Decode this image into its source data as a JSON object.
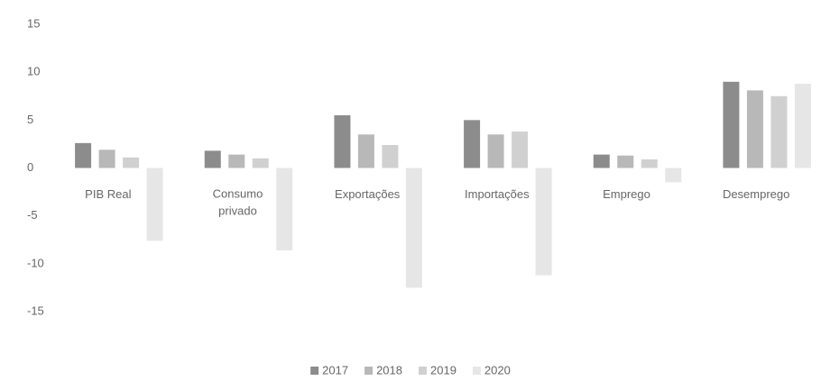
{
  "chart_data": {
    "type": "bar",
    "categories": [
      "PIB Real",
      "Consumo privado",
      "Exportações",
      "Importações",
      "Emprego",
      "Desemprego"
    ],
    "series": [
      {
        "name": "2017",
        "color": "#8c8c8c",
        "values": [
          2.6,
          1.8,
          5.5,
          5.0,
          1.4,
          9.0
        ]
      },
      {
        "name": "2018",
        "color": "#b8b8b8",
        "values": [
          1.9,
          1.4,
          3.5,
          3.5,
          1.3,
          8.1
        ]
      },
      {
        "name": "2019",
        "color": "#d0d0d0",
        "values": [
          1.1,
          1.0,
          2.4,
          3.8,
          0.9,
          7.5
        ]
      },
      {
        "name": "2020",
        "color": "#e6e6e6",
        "values": [
          -7.6,
          -8.6,
          -12.5,
          -11.2,
          -1.5,
          8.8
        ]
      }
    ],
    "ylim": [
      -15,
      15
    ],
    "yticks": [
      -15,
      -10,
      -5,
      0,
      5,
      10,
      15
    ],
    "grid": false,
    "legend": "bottom"
  }
}
